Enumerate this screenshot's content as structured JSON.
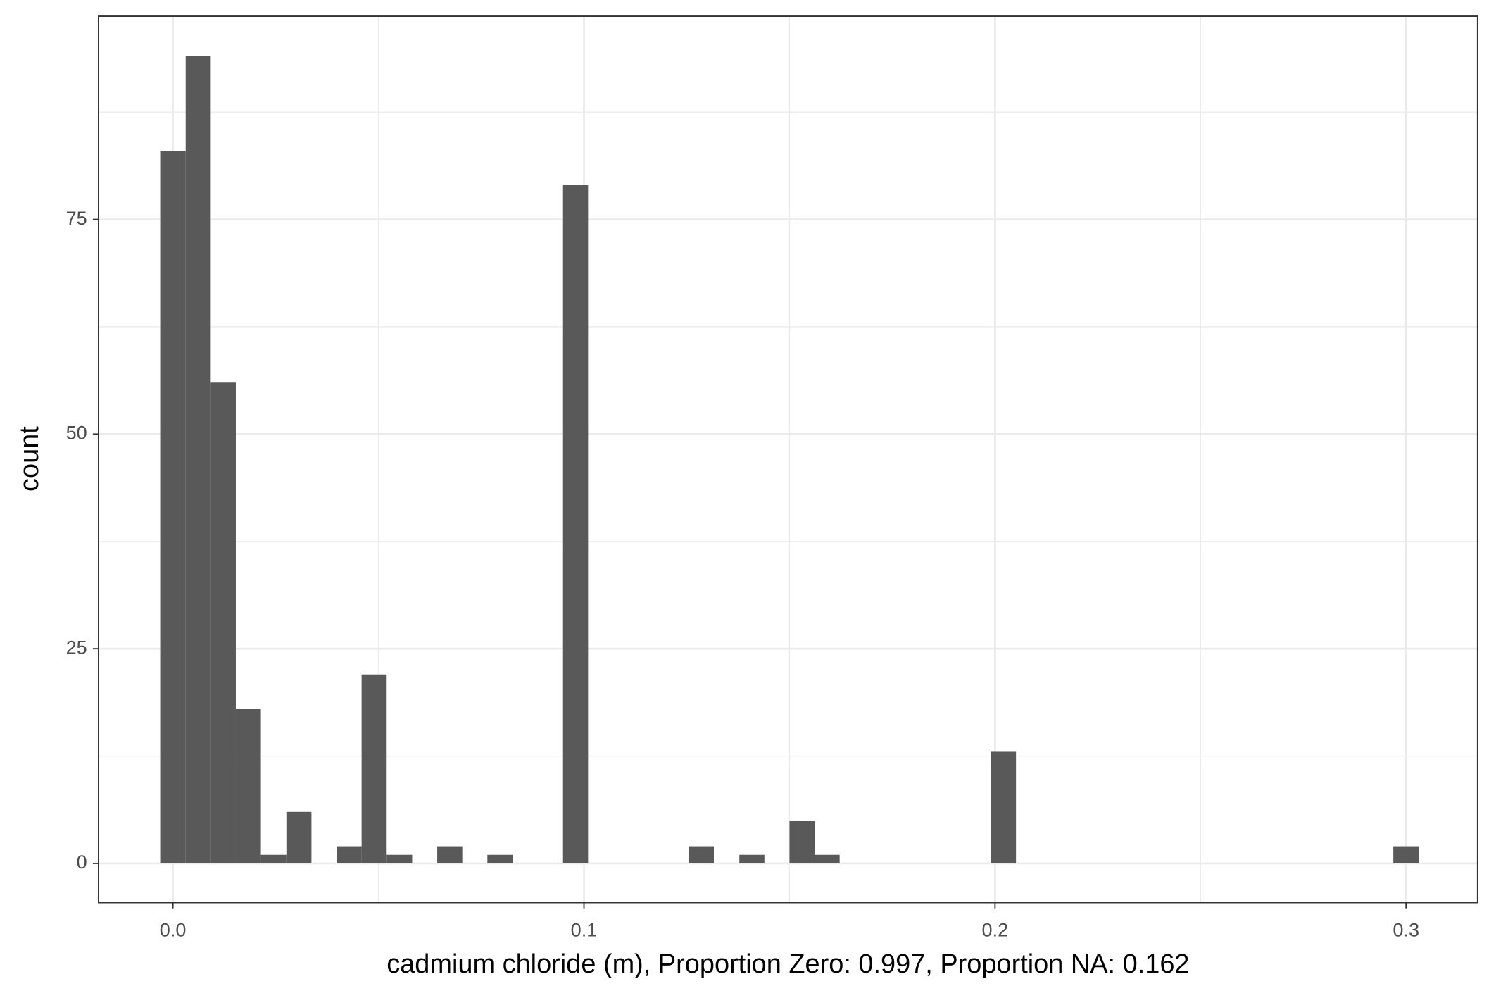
{
  "chart_data": {
    "type": "histogram",
    "x_label": "cadmium chloride (m), Proportion Zero: 0.997, Proportion NA: 0.162",
    "y_label": "count",
    "bins": [
      -0.0031,
      0.0031,
      0.0092,
      0.0153,
      0.0214,
      0.0276,
      0.0337,
      0.0398,
      0.0459,
      0.052,
      0.0582,
      0.0643,
      0.0704,
      0.0765,
      0.0827,
      0.0888,
      0.0949,
      0.101,
      0.1071,
      0.1133,
      0.1194,
      0.1255,
      0.1316,
      0.1378,
      0.1439,
      0.15,
      0.1561,
      0.1622,
      0.1684,
      0.1745,
      0.1806,
      0.1867,
      0.1929,
      0.199,
      0.2051,
      0.2112,
      0.2173,
      0.2235,
      0.2296,
      0.2357,
      0.2418,
      0.248,
      0.2541,
      0.2602,
      0.2663,
      0.2724,
      0.2786,
      0.2847,
      0.2908,
      0.2969,
      0.3031
    ],
    "values": [
      83,
      94,
      56,
      18,
      1,
      6,
      0,
      2,
      22,
      1,
      0,
      2,
      0,
      1,
      0,
      0,
      79,
      0,
      0,
      0,
      0,
      2,
      0,
      1,
      0,
      5,
      1,
      0,
      0,
      0,
      0,
      0,
      0,
      13,
      0,
      0,
      0,
      0,
      0,
      0,
      0,
      0,
      0,
      0,
      0,
      0,
      0,
      0,
      0,
      2
    ],
    "color": "#595959",
    "xlim": [
      -0.0181,
      0.3174
    ],
    "ylim": [
      -4.56,
      98.67
    ],
    "xticks": [
      {
        "value": 0,
        "label": "0.0"
      },
      0.1,
      0.2,
      0.3
    ],
    "yticks": [
      0,
      25,
      50,
      75
    ],
    "x_minor_ticks": [
      0.05,
      0.15,
      0.25
    ],
    "y_minor_ticks": [
      12.5,
      37.5,
      62.5,
      87.5
    ],
    "grid": true
  }
}
